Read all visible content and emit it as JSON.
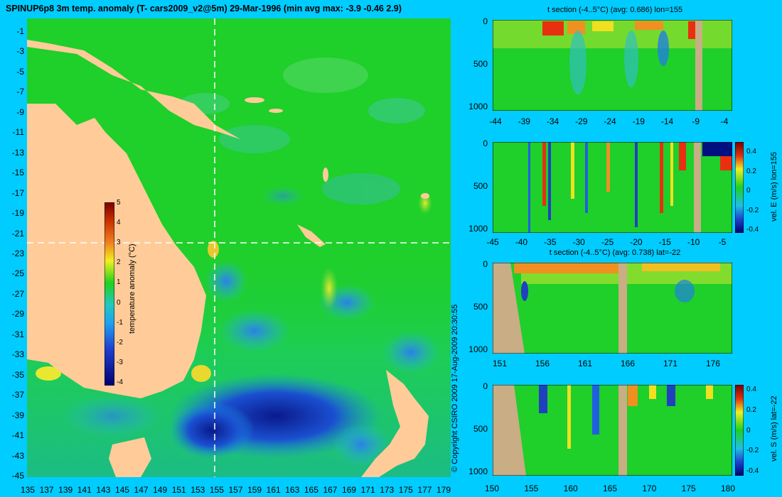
{
  "main_map": {
    "title": "SPINUP6p8 3m temp. anomaly (T- cars2009_v2@5m) 29-Mar-1996 (min avg max: -3.9 -0.46 2.9)",
    "lat_ticks": [
      "-1",
      "-3",
      "-5",
      "-7",
      "-9",
      "-11",
      "-13",
      "-15",
      "-17",
      "-19",
      "-21",
      "-23",
      "-25",
      "-27",
      "-29",
      "-31",
      "-33",
      "-35",
      "-37",
      "-39",
      "-41",
      "-43",
      "-45"
    ],
    "lon_ticks": [
      "135",
      "137",
      "139",
      "141",
      "143",
      "145",
      "147",
      "149",
      "151",
      "153",
      "155",
      "157",
      "159",
      "161",
      "163",
      "165",
      "167",
      "169",
      "171",
      "173",
      "175",
      "177",
      "179"
    ],
    "colorbar": {
      "label": "temperature anomaly (°C)",
      "ticks": [
        "5",
        "4",
        "3",
        "2",
        "1",
        "0",
        "-1",
        "-2",
        "-3",
        "-4"
      ]
    },
    "crosshair": {
      "lon": 155,
      "lat": -22
    }
  },
  "copyright": "© Copyright CSIRO 2009  17-Aug-2009 20:30:55",
  "panels": {
    "p1": {
      "title": "t section (-4..5°C) (avg: 0.686) lon=155",
      "y_ticks": [
        "0",
        "500",
        "1000"
      ],
      "x_ticks": [
        "-44",
        "-39",
        "-34",
        "-29",
        "-24",
        "-19",
        "-14",
        "-9",
        "-4"
      ]
    },
    "p2": {
      "title": "",
      "y_ticks": [
        "0",
        "500",
        "1000"
      ],
      "x_ticks": [
        "-45",
        "-40",
        "-35",
        "-30",
        "-25",
        "-20",
        "-15",
        "-10",
        "-5"
      ],
      "colorbar_label": "vel. E (m/s) lon=155",
      "colorbar_ticks": [
        "0.4",
        "0.2",
        "0",
        "-0.2",
        "-0.4"
      ]
    },
    "p3": {
      "title": "t section (-4..5°C) (avg: 0.738) lat=-22",
      "y_ticks": [
        "0",
        "500",
        "1000"
      ],
      "x_ticks": [
        "151",
        "156",
        "161",
        "166",
        "171",
        "176"
      ]
    },
    "p4": {
      "title": "",
      "y_ticks": [
        "0",
        "500",
        "1000"
      ],
      "x_ticks": [
        "150",
        "155",
        "160",
        "165",
        "170",
        "175",
        "180"
      ],
      "colorbar_label": "vel. S (m/s) lat=-22",
      "colorbar_ticks": [
        "0.4",
        "0.2",
        "0",
        "-0.2",
        "-0.4"
      ]
    }
  },
  "colors": {
    "background": "#00ccff",
    "land": "#ffcc99",
    "section_land": "#c8ad85",
    "ocean_base": "#1fcf2a"
  }
}
